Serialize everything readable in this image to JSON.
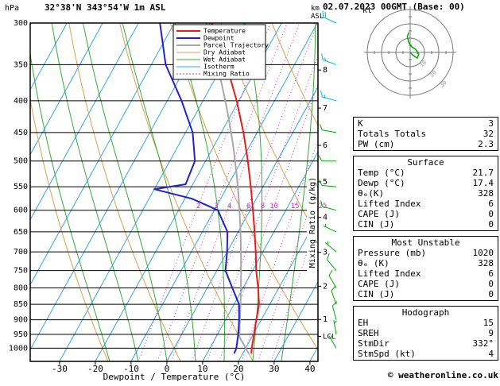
{
  "header": {
    "title": "32°38'N 343°54'W 1m ASL",
    "datetime": "02.07.2023 00GMT (Base: 00)",
    "copyright": "© weatheronline.co.uk"
  },
  "axes": {
    "unit_left": "hPa",
    "alt_unit_lines": [
      "km",
      "ASL"
    ],
    "xlabel": "Dewpoint / Temperature (°C)",
    "x_ticks": [
      -30,
      -20,
      -10,
      0,
      10,
      20,
      30,
      40
    ],
    "pressure_ticks": [
      300,
      350,
      400,
      450,
      500,
      550,
      600,
      650,
      700,
      750,
      800,
      850,
      900,
      950,
      1000
    ],
    "km_ticks": [
      {
        "km": 8,
        "p": 357
      },
      {
        "km": 7,
        "p": 411
      },
      {
        "km": 6,
        "p": 472
      },
      {
        "km": 5,
        "p": 540
      },
      {
        "km": 4,
        "p": 616
      },
      {
        "km": 3,
        "p": 701
      },
      {
        "km": 2,
        "p": 795
      },
      {
        "km": 1,
        "p": 899
      }
    ],
    "lcl_label": "LCL",
    "mixing_ratio_axis_label": "Mixing Ratio (g/kg)"
  },
  "colors": {
    "temperature": "#e81c1c",
    "dewpoint": "#2222cc",
    "parcel": "#a8a8a8",
    "dry_adiabat": "#d8a050",
    "wet_adiabat": "#3aa83a",
    "isotherm": "#35a4e8",
    "mixing_ratio": "#cc33cc",
    "grid": "#000000",
    "barb_high": "#00b4d0",
    "barb_low": "#00a800"
  },
  "legend": [
    {
      "label": "Temperature",
      "color": "#e81c1c",
      "width": 2
    },
    {
      "label": "Dewpoint",
      "color": "#2222cc",
      "width": 2
    },
    {
      "label": "Parcel Trajectory",
      "color": "#a8a8a8",
      "width": 2
    },
    {
      "label": "Dry Adiabat",
      "color": "#d8a050",
      "width": 1
    },
    {
      "label": "Wet Adiabat",
      "color": "#3aa83a",
      "width": 1
    },
    {
      "label": "Isotherm",
      "color": "#35a4e8",
      "width": 1
    },
    {
      "label": "Mixing Ratio",
      "color": "#cc33cc",
      "width": 1,
      "dash": "2,2"
    }
  ],
  "chart_data": {
    "type": "skewt_sounding",
    "title": "32°38'N 343°54'W 1m ASL",
    "valid": "02.07.2023 00GMT (Base: 00)",
    "pressure_range_hPa": [
      300,
      1050
    ],
    "temp_axis_range_C": [
      -30,
      40
    ],
    "isotherm_step_C": 10,
    "dry_adiabat_theta_C": [
      -20,
      0,
      20,
      40,
      60,
      80,
      100,
      120,
      140,
      160,
      180
    ],
    "wet_adiabat_start_C": [
      -16,
      -8,
      0,
      8,
      16,
      24,
      32
    ],
    "mixing_ratio_lines_g_per_kg": [
      2,
      3,
      4,
      6,
      8,
      10,
      15,
      20,
      25
    ],
    "temperature_profile": {
      "pressure_hPa": [
        1020,
        1000,
        950,
        900,
        850,
        800,
        750,
        700,
        650,
        600,
        550,
        500,
        450,
        400,
        350,
        300
      ],
      "temp_C": [
        22.4,
        21.7,
        20.2,
        18.6,
        17.0,
        14.2,
        11.0,
        8.0,
        4.6,
        0.8,
        -3.4,
        -8.2,
        -13.8,
        -20.6,
        -29.0,
        -39.5
      ]
    },
    "dewpoint_profile": {
      "pressure_hPa": [
        1020,
        1000,
        950,
        900,
        850,
        800,
        750,
        700,
        650,
        600,
        575,
        555,
        545,
        500,
        450,
        400,
        350,
        300
      ],
      "temp_C": [
        17.6,
        17.4,
        15.8,
        13.8,
        11.4,
        7.0,
        2.4,
        0.0,
        -3.0,
        -9.0,
        -18.0,
        -30.0,
        -22.0,
        -23.0,
        -28.0,
        -36.0,
        -46.0,
        -54.0
      ]
    },
    "parcel": {
      "start_pressure_hPa": 1020,
      "start_temp_C": 21.7,
      "start_dewp_C": 17.4
    },
    "wind_barbs": [
      {
        "pressure": 300,
        "dir": 295,
        "spd": 20,
        "color": "#00b4d0"
      },
      {
        "pressure": 350,
        "dir": 290,
        "spd": 15,
        "color": "#00b4d0"
      },
      {
        "pressure": 400,
        "dir": 285,
        "spd": 15,
        "color": "#00b4d0"
      },
      {
        "pressure": 450,
        "dir": 280,
        "spd": 10,
        "color": "#00a800"
      },
      {
        "pressure": 500,
        "dir": 270,
        "spd": 10,
        "color": "#00a800"
      },
      {
        "pressure": 550,
        "dir": 275,
        "spd": 10,
        "color": "#00a800"
      },
      {
        "pressure": 600,
        "dir": 285,
        "spd": 10,
        "color": "#00a800"
      },
      {
        "pressure": 650,
        "dir": 295,
        "spd": 5,
        "color": "#00a800"
      },
      {
        "pressure": 700,
        "dir": 310,
        "spd": 5,
        "color": "#00a800"
      },
      {
        "pressure": 750,
        "dir": 320,
        "spd": 10,
        "color": "#00a800"
      },
      {
        "pressure": 800,
        "dir": 330,
        "spd": 10,
        "color": "#00a800"
      },
      {
        "pressure": 850,
        "dir": 340,
        "spd": 10,
        "color": "#00a800"
      },
      {
        "pressure": 900,
        "dir": 345,
        "spd": 10,
        "color": "#00a800"
      },
      {
        "pressure": 950,
        "dir": 350,
        "spd": 5,
        "color": "#00a800"
      },
      {
        "pressure": 1000,
        "dir": 330,
        "spd": 5,
        "color": "#00a800"
      }
    ]
  },
  "hodograph": {
    "unit": "kt",
    "rings_kt": [
      10,
      20,
      30
    ],
    "trace": [
      [
        0,
        0
      ],
      [
        2,
        -2
      ],
      [
        5,
        -4
      ],
      [
        6,
        -1
      ],
      [
        4,
        2
      ],
      [
        1,
        4
      ],
      [
        -1,
        7
      ],
      [
        -2,
        11
      ],
      [
        -1,
        14
      ]
    ],
    "trace_color": "#00a800"
  },
  "tables": [
    {
      "title": "",
      "rows": [
        [
          "K",
          "3"
        ],
        [
          "Totals Totals",
          "32"
        ],
        [
          "PW (cm)",
          "2.3"
        ]
      ]
    },
    {
      "title": "Surface",
      "rows": [
        [
          "Temp (°C)",
          "21.7"
        ],
        [
          "Dewp (°C)",
          "17.4"
        ],
        [
          "θₑ(K)",
          "328"
        ],
        [
          "Lifted Index",
          "6"
        ],
        [
          "CAPE (J)",
          "0"
        ],
        [
          "CIN (J)",
          "0"
        ]
      ]
    },
    {
      "title": "Most Unstable",
      "rows": [
        [
          "Pressure (mb)",
          "1020"
        ],
        [
          "θₑ (K)",
          "328"
        ],
        [
          "Lifted Index",
          "6"
        ],
        [
          "CAPE (J)",
          "0"
        ],
        [
          "CIN (J)",
          "0"
        ]
      ]
    },
    {
      "title": "Hodograph",
      "rows": [
        [
          "EH",
          "15"
        ],
        [
          "SREH",
          "9"
        ],
        [
          "StmDir",
          "332°"
        ],
        [
          "StmSpd (kt)",
          "4"
        ]
      ]
    }
  ]
}
